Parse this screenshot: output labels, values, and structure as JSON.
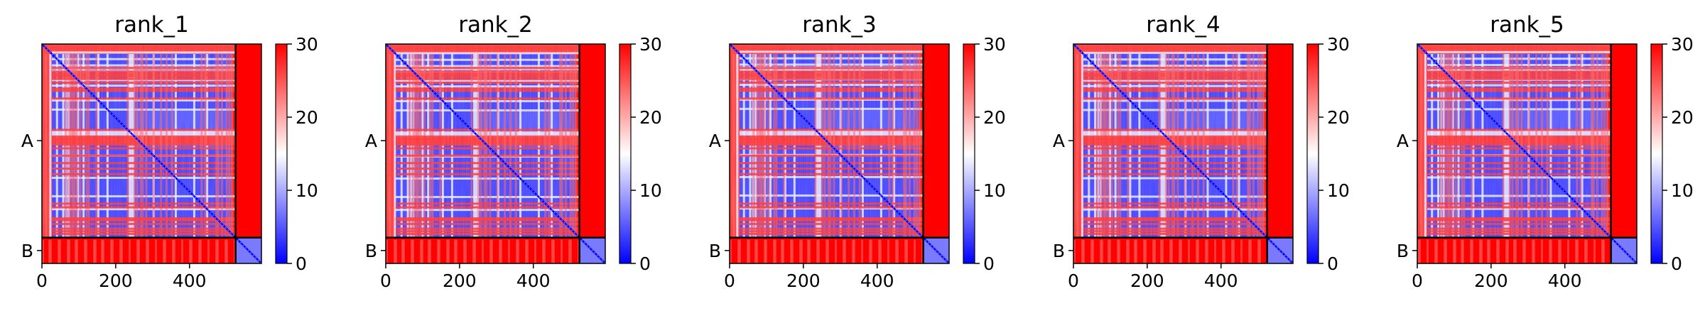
{
  "chart_data": [
    {
      "type": "heatmap",
      "title": "rank_1",
      "variant": 0
    },
    {
      "type": "heatmap",
      "title": "rank_2",
      "variant": 1
    },
    {
      "type": "heatmap",
      "title": "rank_3",
      "variant": 2
    },
    {
      "type": "heatmap",
      "title": "rank_4",
      "variant": 3
    },
    {
      "type": "heatmap",
      "title": "rank_5",
      "variant": 4
    }
  ],
  "shared": {
    "x_range": [
      0,
      595
    ],
    "x_ticks": [
      0,
      200,
      400
    ],
    "chain_boundary": 525,
    "chain_labels": [
      {
        "label": "A",
        "center": 262
      },
      {
        "label": "B",
        "center": 560
      }
    ],
    "colorbar": {
      "range": [
        0,
        30
      ],
      "ticks": [
        0,
        10,
        20,
        30
      ],
      "colormap": "bwr",
      "low_color": "#0000ff",
      "mid_color": "#ffffff",
      "high_color": "#ff0000"
    }
  }
}
